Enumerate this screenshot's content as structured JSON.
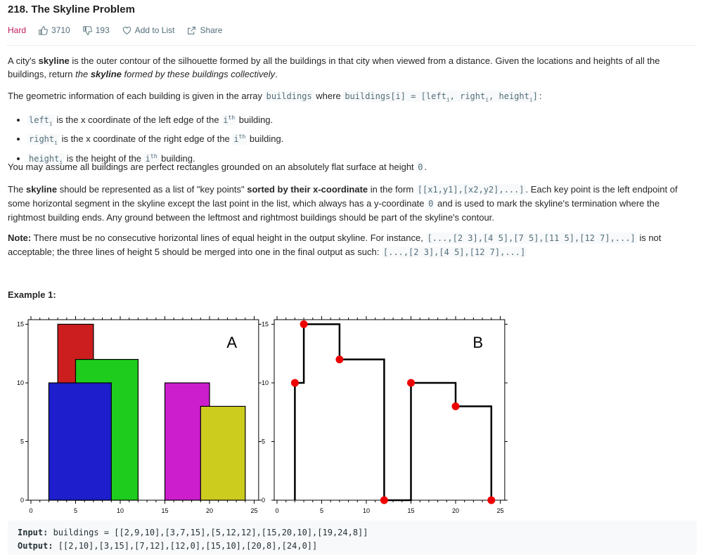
{
  "problem": {
    "title": "218. The Skyline Problem",
    "difficulty": "Hard",
    "likes": "3710",
    "dislikes": "193",
    "add_to_list": "Add to List",
    "share": "Share"
  },
  "description": {
    "p1_a": "A city's ",
    "p1_b": "skyline",
    "p1_c": " is the outer contour of the silhouette formed by all the buildings in that city when viewed from a distance. Given the locations and heights of all the buildings, return ",
    "p1_d": "the ",
    "p1_e": "skyline",
    "p1_f": " formed by these buildings collectively",
    "p1_g": ".",
    "p2_a": "The geometric information of each building is given in the array ",
    "p2_code1": "buildings",
    "p2_b": " where ",
    "p2_code2a": "buildings[i] = [left",
    "p2_code2b": ", right",
    "p2_code2c": ", height",
    "p2_code2d": "]",
    "p2_c": ":",
    "sub_i": "i",
    "bullets": [
      {
        "code": "left",
        "text": " is the x coordinate of the left edge of the ",
        "code2": "i",
        "sup": "th",
        "text2": " building."
      },
      {
        "code": "right",
        "text": " is the x coordinate of the right edge of the ",
        "code2": "i",
        "sup": "th",
        "text2": " building."
      },
      {
        "code": "height",
        "text": " is the height of the ",
        "code2": "i",
        "sup": "th",
        "text2": " building."
      }
    ],
    "p3_a": "You may assume all buildings are perfect rectangles grounded on an absolutely flat surface at height ",
    "p3_code": "0",
    "p3_b": ".",
    "p4_a": "The ",
    "p4_b": "skyline",
    "p4_c": " should be represented as a list of \"key points\" ",
    "p4_d": "sorted by their x-coordinate",
    "p4_e": " in the form ",
    "p4_code": "[[x1,y1],[x2,y2],...]",
    "p4_f": ". Each key point is the left endpoint of some horizontal segment in the skyline except the last point in the list, which always has a y-coordinate ",
    "p4_code2": "0",
    "p4_g": " and is used to mark the skyline's termination where the rightmost building ends. Any ground between the leftmost and rightmost buildings should be part of the skyline's contour.",
    "p5_a": "Note:",
    "p5_b": " There must be no consecutive horizontal lines of equal height in the output skyline. For instance, ",
    "p5_code1": "[...,[2 3],[4 5],[7 5],[11 5],[12 7],...]",
    "p5_c": " is not acceptable; the three lines of height 5 should be merged into one in the final output as such: ",
    "p5_code2": "[...,[2 3],[4 5],[12 7],...]"
  },
  "example": {
    "title": "Example 1:",
    "input_label": "Input:",
    "input_value": " buildings = [[2,9,10],[3,7,15],[5,12,12],[15,20,10],[19,24,8]]",
    "output_label": "Output:",
    "output_value": " [[2,10],[3,15],[7,12],[12,0],[15,10],[20,8],[24,0]]"
  },
  "figure": {
    "panel_a_label": "A",
    "panel_b_label": "B",
    "x_ticks": [
      "0",
      "5",
      "10",
      "15",
      "20",
      "25"
    ],
    "y_ticks": [
      "0",
      "5",
      "10",
      "15"
    ],
    "buildings": [
      {
        "left": 2,
        "right": 9,
        "height": 10,
        "color": "#1e1ecc"
      },
      {
        "left": 3,
        "right": 7,
        "height": 15,
        "color": "#cc1e1e"
      },
      {
        "left": 5,
        "right": 12,
        "height": 12,
        "color": "#1ecc1e"
      },
      {
        "left": 15,
        "right": 20,
        "height": 10,
        "color": "#cc1ecc"
      },
      {
        "left": 19,
        "right": 24,
        "height": 8,
        "color": "#cccc1e"
      }
    ],
    "key_points": [
      [
        2,
        10
      ],
      [
        3,
        15
      ],
      [
        7,
        12
      ],
      [
        12,
        0
      ],
      [
        15,
        10
      ],
      [
        20,
        8
      ],
      [
        24,
        0
      ]
    ],
    "point_color": "#ee0000"
  },
  "colors": {
    "hard": "#c2185b",
    "meta": "#546e7a",
    "code_bg": "#f7f9fa"
  }
}
